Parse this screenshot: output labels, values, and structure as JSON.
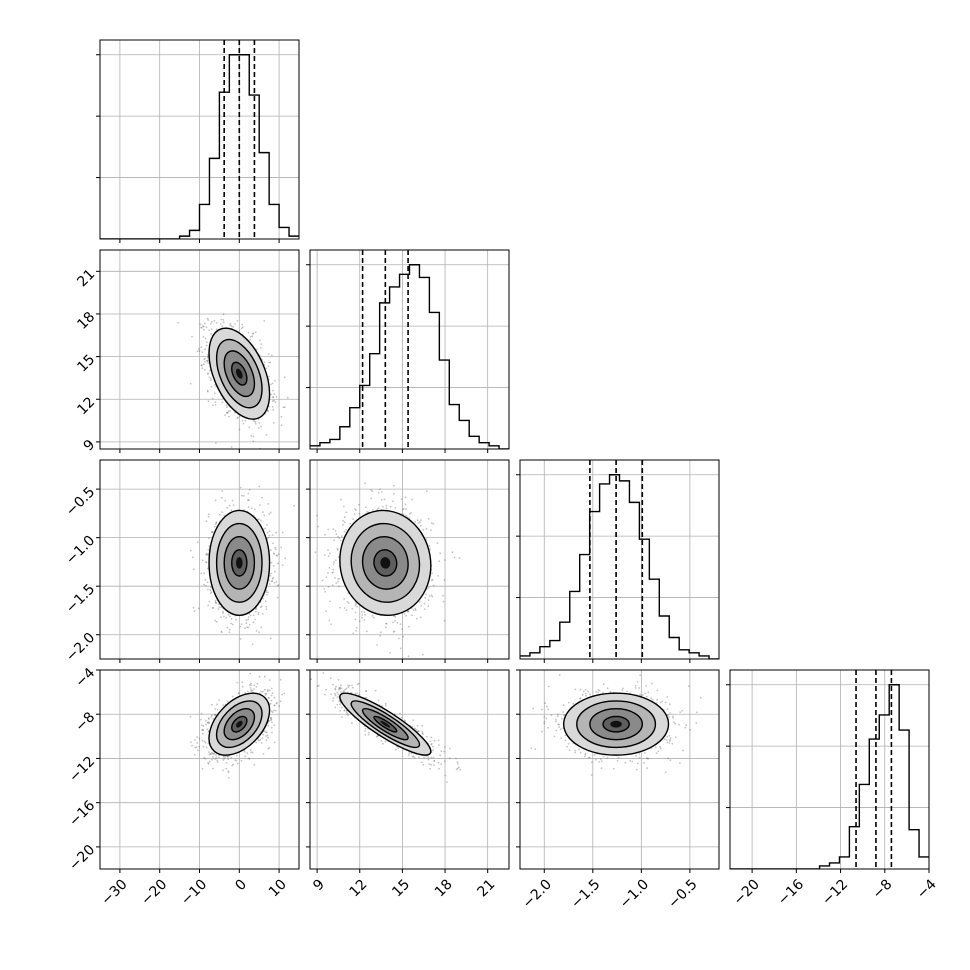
{
  "chart_data": {
    "type": "corner",
    "description_note": "",
    "parameters": [
      {
        "ticks": [
          -30,
          -20,
          -10,
          0,
          10
        ],
        "tick_labels": [
          "−30",
          "−20",
          "−10",
          "0",
          "10"
        ],
        "range": [
          -35,
          15
        ],
        "quantiles": [
          -3.8,
          0.0,
          3.8
        ],
        "hist_edges_start": -35,
        "hist_bin_width": 2.5,
        "hist": [
          0,
          0,
          0,
          0,
          0,
          0,
          0,
          0,
          1,
          3,
          12,
          28,
          51,
          64,
          64,
          50,
          30,
          12,
          4,
          1
        ]
      },
      {
        "ticks": [
          9,
          12,
          15,
          18,
          21
        ],
        "tick_labels": [
          "9",
          "12",
          "15",
          "18",
          "21"
        ],
        "range": [
          8.5,
          22.5
        ],
        "quantiles": [
          12.2,
          13.8,
          15.4
        ],
        "hist_edges_start": 8.5,
        "hist_bin_width": 0.7,
        "hist": [
          1,
          2,
          3,
          7,
          13,
          20,
          30,
          46,
          51,
          55,
          58,
          54,
          43,
          28,
          14,
          9,
          4,
          2,
          1,
          0
        ]
      },
      {
        "ticks": [
          -2.0,
          -1.5,
          -1.0,
          -0.5
        ],
        "tick_labels": [
          "−2.0",
          "−1.5",
          "−1.0",
          "−0.5"
        ],
        "range": [
          -2.25,
          -0.2
        ],
        "quantiles": [
          -1.53,
          -1.26,
          -0.99
        ],
        "hist_edges_start": -2.25,
        "hist_bin_width": 0.1025,
        "hist": [
          1,
          2,
          4,
          6,
          12,
          22,
          34,
          48,
          57,
          60,
          58,
          51,
          39,
          26,
          14,
          7,
          3,
          2,
          1,
          0
        ]
      },
      {
        "ticks": [
          -20,
          -16,
          -12,
          -8,
          -4
        ],
        "tick_labels": [
          "−20",
          "−16",
          "−12",
          "−8",
          "−4"
        ],
        "range": [
          -22,
          -4
        ],
        "quantiles": [
          -10.6,
          -8.8,
          -7.4
        ],
        "hist_edges_start": -22,
        "hist_bin_width": 0.9,
        "hist": [
          0,
          0,
          0,
          0,
          0,
          0,
          0,
          0,
          0,
          1,
          2,
          4,
          14,
          28,
          43,
          51,
          61,
          46,
          13,
          4
        ]
      }
    ],
    "pairs": [
      {
        "row": 1,
        "col": 0,
        "mean": [
          0.0,
          13.8
        ],
        "sd": [
          3.8,
          1.6
        ],
        "corr": -0.45
      },
      {
        "row": 2,
        "col": 0,
        "mean": [
          0.0,
          -1.26
        ],
        "sd": [
          3.8,
          0.27
        ],
        "corr": 0.0
      },
      {
        "row": 2,
        "col": 1,
        "mean": [
          13.8,
          -1.26
        ],
        "sd": [
          1.6,
          0.27
        ],
        "corr": -0.05
      },
      {
        "row": 3,
        "col": 0,
        "mean": [
          0.0,
          -8.9
        ],
        "sd": [
          3.8,
          1.4
        ],
        "corr": 0.45
      },
      {
        "row": 3,
        "col": 1,
        "mean": [
          13.8,
          -8.9
        ],
        "sd": [
          1.6,
          1.4
        ],
        "corr": -0.88
      },
      {
        "row": 3,
        "col": 2,
        "mean": [
          -1.26,
          -8.9
        ],
        "sd": [
          0.27,
          1.4
        ],
        "corr": 0.0
      }
    ],
    "contour_levels_sigma": [
      0.5,
      1.0,
      1.5,
      2.0
    ],
    "quantile_line_style": "dashed",
    "grid": true
  }
}
